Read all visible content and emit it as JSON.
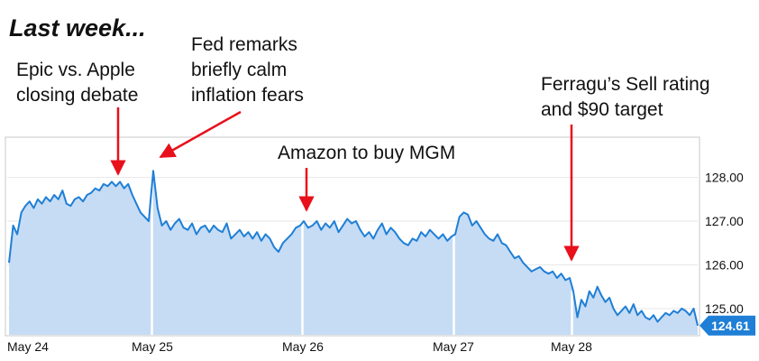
{
  "heading": "Last week...",
  "annotations": {
    "epic": [
      "Epic vs. Apple",
      "closing debate"
    ],
    "fed": [
      "Fed remarks",
      "briefly calm",
      "inflation fears"
    ],
    "amazon": [
      "Amazon to buy MGM"
    ],
    "ferragu": [
      "Ferragu’s Sell rating",
      "and $90 target"
    ]
  },
  "colors": {
    "line": "#1f7fd6",
    "area": "#c6dcf4",
    "arrow": "#e8101b",
    "frame": "#c8c8c8",
    "grid": "#e6e6e6",
    "badge": "#1f7fd6"
  },
  "chart_data": {
    "type": "area",
    "title": "",
    "xlabel": "",
    "ylabel": "",
    "x_ticks": [
      "May 24",
      "May 25",
      "May 26",
      "May 27",
      "May 28"
    ],
    "y_ticks": [
      "128.00",
      "127.00",
      "126.00",
      "125.00"
    ],
    "ylim": [
      124.4,
      128.9
    ],
    "last_price": "124.61",
    "grid": true,
    "series": [
      {
        "days": [
          {
            "day": "May 24",
            "values": [
              126.05,
              126.9,
              126.7,
              127.2,
              127.35,
              127.45,
              127.3,
              127.5,
              127.4,
              127.55,
              127.45,
              127.6,
              127.5,
              127.7,
              127.4,
              127.35,
              127.5,
              127.55,
              127.45,
              127.6,
              127.65,
              127.75,
              127.7,
              127.85,
              127.8,
              127.9,
              127.8,
              127.9,
              127.75,
              127.85,
              127.6,
              127.4,
              127.2,
              127.1,
              127.0
            ]
          },
          {
            "day": "May 25",
            "values": [
              128.15,
              127.3,
              126.9,
              127.0,
              126.8,
              126.95,
              127.05,
              126.85,
              126.8,
              126.95,
              126.7,
              126.85,
              126.9,
              126.75,
              126.9,
              126.8,
              126.75,
              126.95,
              126.6,
              126.7,
              126.8,
              126.65,
              126.75,
              126.6,
              126.75,
              126.55,
              126.7,
              126.6,
              126.4,
              126.3,
              126.5,
              126.6,
              126.7,
              126.85,
              126.9
            ]
          },
          {
            "day": "May 26",
            "values": [
              127.0,
              126.85,
              126.9,
              127.0,
              126.8,
              126.95,
              126.85,
              127.0,
              126.75,
              126.9,
              127.05,
              126.95,
              127.0,
              126.8,
              126.65,
              126.75,
              126.6,
              126.8,
              126.95,
              126.7,
              126.85,
              126.75,
              126.6,
              126.5,
              126.45,
              126.6,
              126.55,
              126.75,
              126.65,
              126.8,
              126.7,
              126.6,
              126.7,
              126.55,
              126.65
            ]
          },
          {
            "day": "May 27",
            "values": [
              126.7,
              127.1,
              127.2,
              127.15,
              126.9,
              127.0,
              126.85,
              126.7,
              126.6,
              126.55,
              126.7,
              126.5,
              126.45,
              126.3,
              126.15,
              126.2,
              126.05,
              125.95,
              125.85,
              125.9,
              125.95,
              125.85,
              125.8,
              125.85,
              125.7,
              125.8,
              125.65,
              125.7
            ]
          },
          {
            "day": "May 28",
            "values": [
              125.4,
              124.8,
              125.2,
              125.05,
              125.4,
              125.25,
              125.5,
              125.3,
              125.15,
              125.25,
              125.0,
              124.85,
              124.95,
              125.05,
              124.9,
              125.1,
              124.85,
              124.95,
              124.8,
              124.75,
              124.85,
              124.7,
              124.8,
              124.9,
              124.85,
              124.95,
              124.9,
              125.0,
              124.95,
              124.85,
              125.0,
              124.61
            ]
          }
        ]
      }
    ]
  }
}
